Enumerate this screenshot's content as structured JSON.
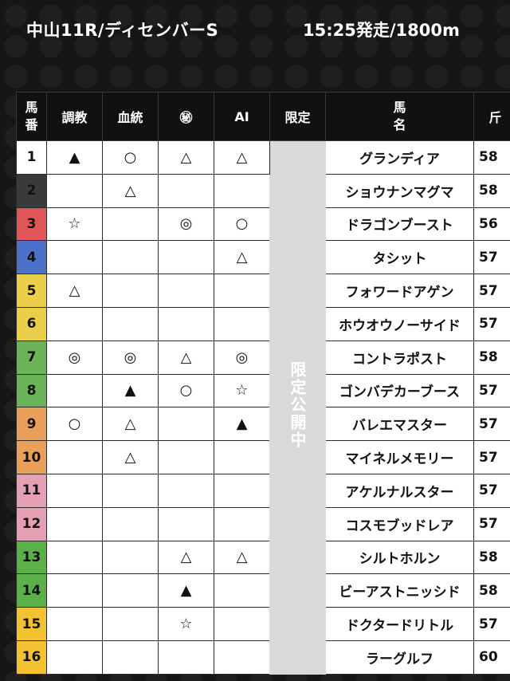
{
  "header": {
    "race_title": "中山11R/ディセンバーS",
    "start_info": "15:25発走/1800m"
  },
  "table": {
    "headers": {
      "number": [
        "馬",
        "番"
      ],
      "training": "調教",
      "bloodline": "血統",
      "secret": "㊙",
      "ai": "AI",
      "limited": "限定",
      "horse_name": [
        "馬",
        "名"
      ],
      "weight": "斤"
    },
    "limited_text": "限定公開中",
    "rows": [
      {
        "num": "1",
        "color": "#ffffff",
        "text_color": "#111111",
        "training": "▲",
        "bloodline": "○",
        "secret": "△",
        "ai": "△",
        "name": "グランディア",
        "weight": "58"
      },
      {
        "num": "2",
        "color": "#3a3a3a",
        "text_color": "#111111",
        "training": "",
        "bloodline": "△",
        "secret": "",
        "ai": "",
        "name": "ショウナンマグマ",
        "weight": "58"
      },
      {
        "num": "3",
        "color": "#e05555",
        "text_color": "#111111",
        "training": "☆",
        "bloodline": "",
        "secret": "◎",
        "ai": "○",
        "name": "ドラゴンブースト",
        "weight": "56"
      },
      {
        "num": "4",
        "color": "#4a72c8",
        "text_color": "#111111",
        "training": "",
        "bloodline": "",
        "secret": "",
        "ai": "△",
        "name": "タシット",
        "weight": "57"
      },
      {
        "num": "5",
        "color": "#e9cf4a",
        "text_color": "#111111",
        "training": "△",
        "bloodline": "",
        "secret": "",
        "ai": "",
        "name": "フォワードアゲン",
        "weight": "57"
      },
      {
        "num": "6",
        "color": "#e9cf4a",
        "text_color": "#111111",
        "training": "",
        "bloodline": "",
        "secret": "",
        "ai": "",
        "name": "ホウオウノーサイド",
        "weight": "57"
      },
      {
        "num": "7",
        "color": "#6cb45a",
        "text_color": "#111111",
        "training": "◎",
        "bloodline": "◎",
        "secret": "△",
        "ai": "◎",
        "name": "コントラポスト",
        "weight": "58"
      },
      {
        "num": "8",
        "color": "#6cb45a",
        "text_color": "#111111",
        "training": "",
        "bloodline": "▲",
        "secret": "○",
        "ai": "☆",
        "name": "ゴンバデカーブース",
        "weight": "57"
      },
      {
        "num": "9",
        "color": "#eba05a",
        "text_color": "#111111",
        "training": "○",
        "bloodline": "△",
        "secret": "",
        "ai": "▲",
        "name": "バレエマスター",
        "weight": "57"
      },
      {
        "num": "10",
        "color": "#eba05a",
        "text_color": "#111111",
        "training": "",
        "bloodline": "△",
        "secret": "",
        "ai": "",
        "name": "マイネルメモリー",
        "weight": "57"
      },
      {
        "num": "11",
        "color": "#e6a0b4",
        "text_color": "#111111",
        "training": "",
        "bloodline": "",
        "secret": "",
        "ai": "",
        "name": "アケルナルスター",
        "weight": "57"
      },
      {
        "num": "12",
        "color": "#e6a0b4",
        "text_color": "#111111",
        "training": "",
        "bloodline": "",
        "secret": "",
        "ai": "",
        "name": "コスモブッドレア",
        "weight": "57"
      },
      {
        "num": "13",
        "color": "#5cb04a",
        "text_color": "#111111",
        "training": "",
        "bloodline": "",
        "secret": "△",
        "ai": "△",
        "name": "シルトホルン",
        "weight": "58"
      },
      {
        "num": "14",
        "color": "#5cb04a",
        "text_color": "#111111",
        "training": "",
        "bloodline": "",
        "secret": "▲",
        "ai": "",
        "name": "ビーアストニッシド",
        "weight": "58"
      },
      {
        "num": "15",
        "color": "#f2c232",
        "text_color": "#111111",
        "training": "",
        "bloodline": "",
        "secret": "☆",
        "ai": "",
        "name": "ドクタードリトル",
        "weight": "57"
      },
      {
        "num": "16",
        "color": "#f2c232",
        "text_color": "#111111",
        "training": "",
        "bloodline": "",
        "secret": "",
        "ai": "",
        "name": "ラーグルフ",
        "weight": "60"
      }
    ]
  }
}
